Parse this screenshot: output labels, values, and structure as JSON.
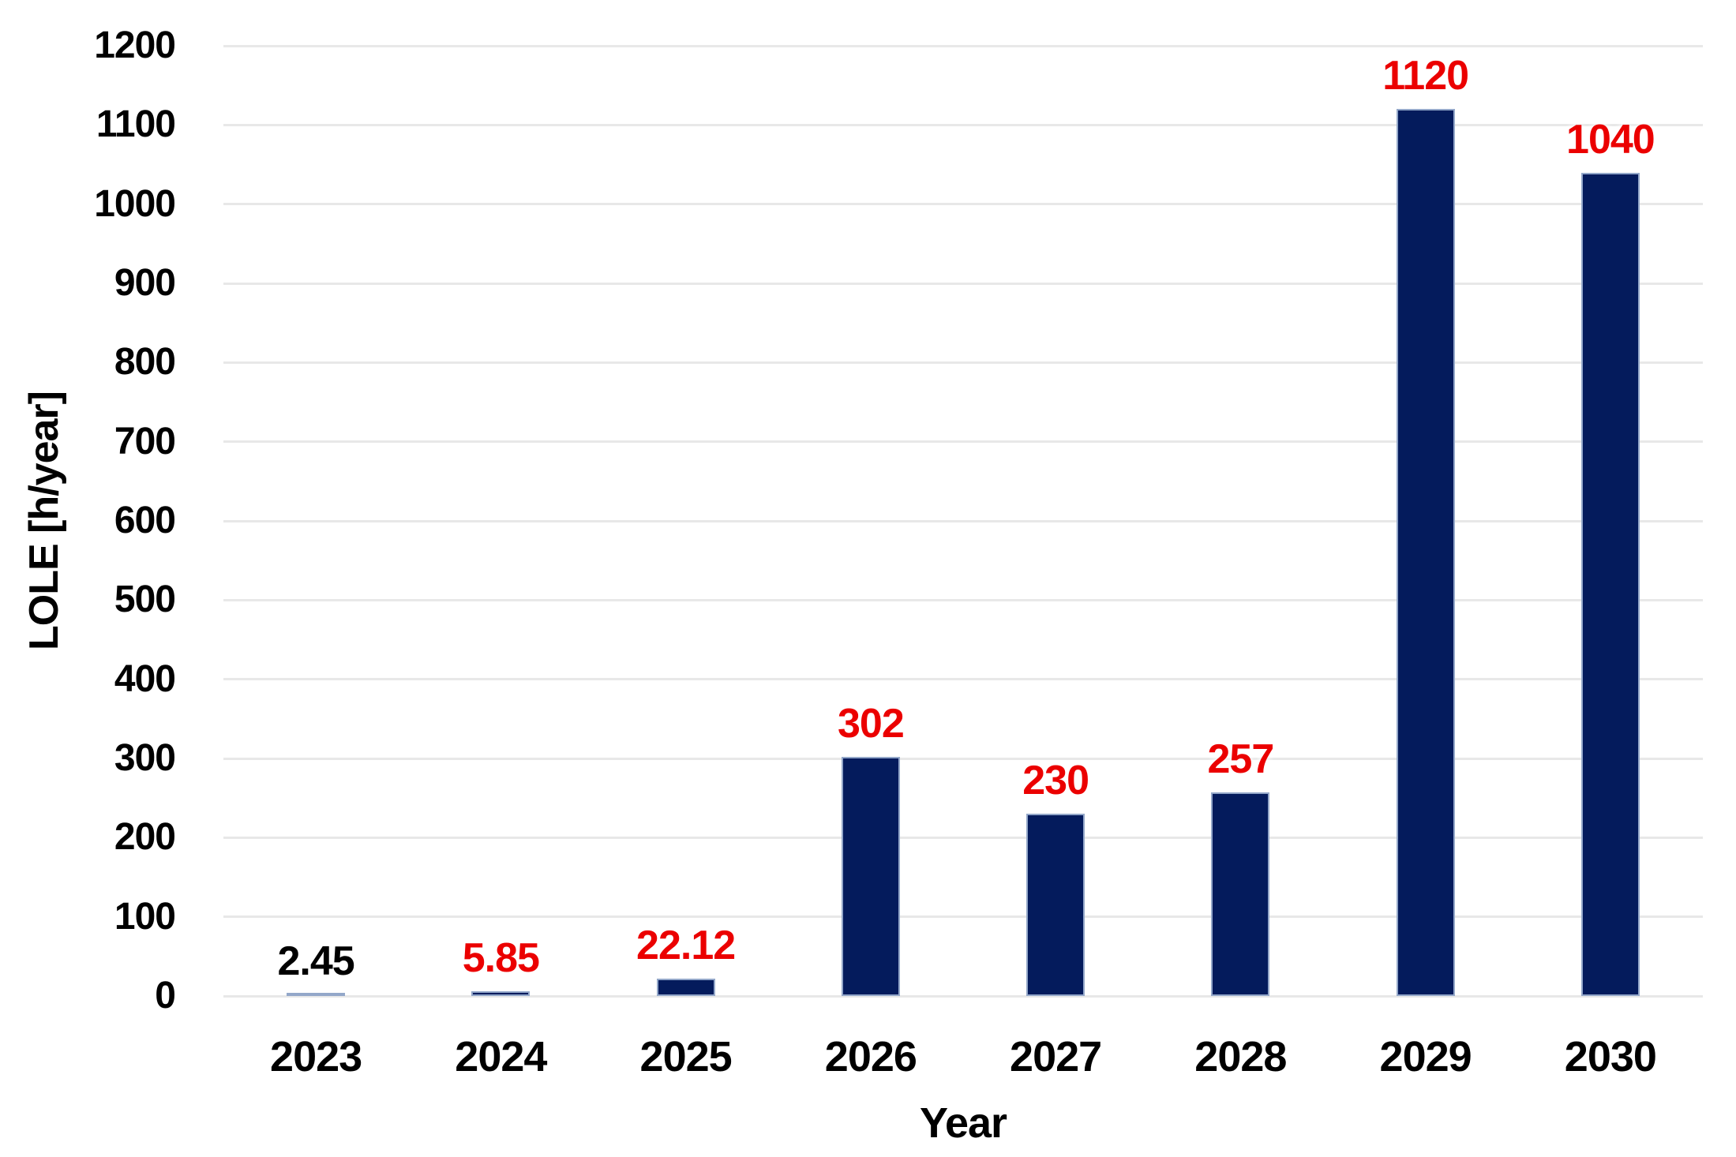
{
  "chart_data": {
    "type": "bar",
    "title": "",
    "xlabel": "Year",
    "ylabel": "LOLE [h/year]",
    "categories": [
      "2023",
      "2024",
      "2025",
      "2026",
      "2027",
      "2028",
      "2029",
      "2030"
    ],
    "values": [
      2.45,
      5.85,
      22.12,
      302,
      230,
      257,
      1120,
      1040
    ],
    "value_labels": [
      "2.45",
      "5.85",
      "22.12",
      "302",
      "230",
      "257",
      "1120",
      "1040"
    ],
    "value_label_colors": [
      "#000000",
      "#EB0000",
      "#EB0000",
      "#EB0000",
      "#EB0000",
      "#EB0000",
      "#EB0000",
      "#EB0000"
    ],
    "ylim": [
      0,
      1200
    ],
    "ytick_step": 100,
    "ytick_labels": [
      "0",
      "100",
      "200",
      "300",
      "400",
      "500",
      "600",
      "700",
      "800",
      "900",
      "1000",
      "1100",
      "1200"
    ],
    "grid": true,
    "legend": false,
    "colors": {
      "bar_fill": "#041B5C",
      "bar_border": "#93A7C9",
      "gridline": "#E8E8E8",
      "axis_text": "#000000",
      "value_label_red": "#EB0000",
      "background": "#FFFFFF"
    }
  }
}
